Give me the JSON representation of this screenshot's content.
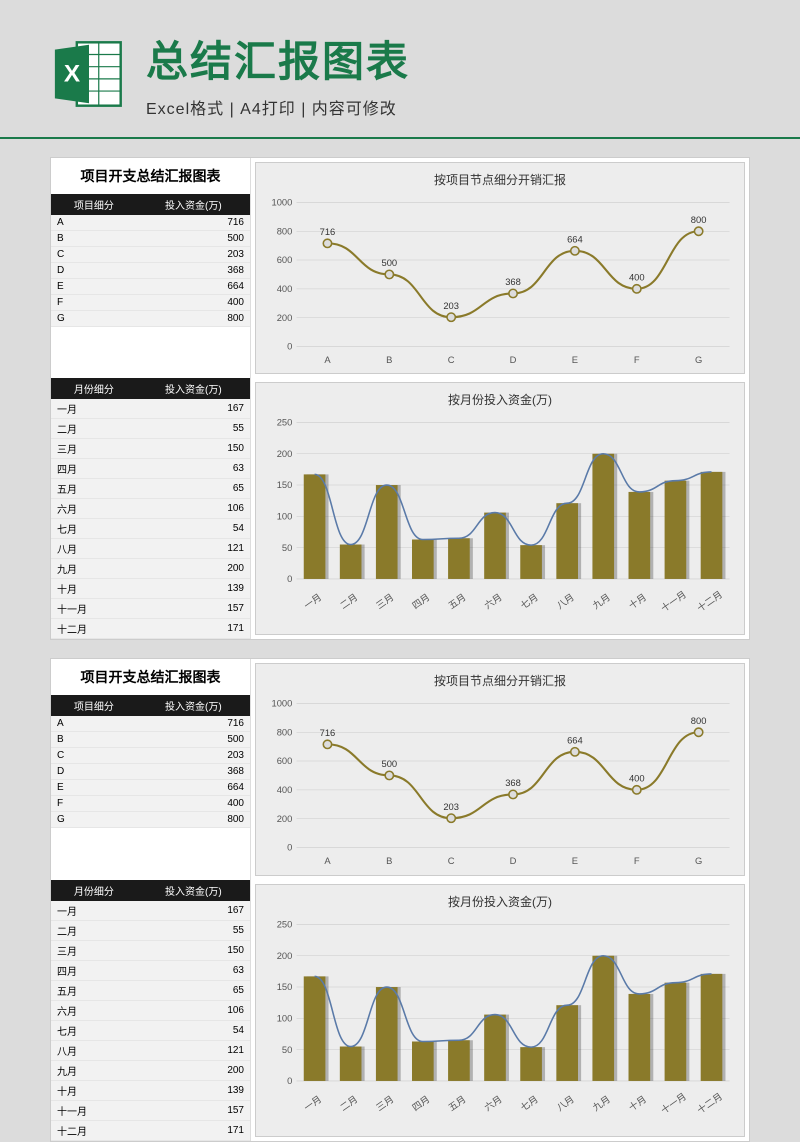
{
  "header": {
    "main_title": "总结汇报图表",
    "sub_title": "Excel格式 | A4打印 | 内容可修改",
    "icon_color": "#1a7a4a"
  },
  "panel": {
    "section_title": "项目开支总结汇报图表",
    "table1": {
      "col1": "项目细分",
      "col2": "投入资金(万)",
      "rows": [
        {
          "k": "A",
          "v": 716
        },
        {
          "k": "B",
          "v": 500
        },
        {
          "k": "C",
          "v": 203
        },
        {
          "k": "D",
          "v": 368
        },
        {
          "k": "E",
          "v": 664
        },
        {
          "k": "F",
          "v": 400
        },
        {
          "k": "G",
          "v": 800
        }
      ]
    },
    "table2": {
      "col1": "月份细分",
      "col2": "投入资金(万)",
      "rows": [
        {
          "k": "一月",
          "v": 167
        },
        {
          "k": "二月",
          "v": 55
        },
        {
          "k": "三月",
          "v": 150
        },
        {
          "k": "四月",
          "v": 63
        },
        {
          "k": "五月",
          "v": 65
        },
        {
          "k": "六月",
          "v": 106
        },
        {
          "k": "七月",
          "v": 54
        },
        {
          "k": "八月",
          "v": 121
        },
        {
          "k": "九月",
          "v": 200
        },
        {
          "k": "十月",
          "v": 139
        },
        {
          "k": "十一月",
          "v": 157
        },
        {
          "k": "十二月",
          "v": 171
        }
      ]
    },
    "chart1": {
      "type": "line",
      "title": "按项目节点细分开销汇报",
      "categories": [
        "A",
        "B",
        "C",
        "D",
        "E",
        "F",
        "G"
      ],
      "values": [
        716,
        500,
        203,
        368,
        664,
        400,
        800
      ],
      "ylim": [
        0,
        1000
      ],
      "ytick_step": 200,
      "line_color": "#8a7a2a",
      "marker_fill": "#dddddd",
      "grid_color": "#cccccc",
      "background_color": "#ededed",
      "label_fontsize": 9,
      "title_fontsize": 12
    },
    "chart2": {
      "type": "bar+line",
      "title": "按月份投入资金(万)",
      "categories": [
        "一月",
        "二月",
        "三月",
        "四月",
        "五月",
        "六月",
        "七月",
        "八月",
        "九月",
        "十月",
        "十一月",
        "十二月"
      ],
      "values": [
        167,
        55,
        150,
        63,
        65,
        106,
        54,
        121,
        200,
        139,
        157,
        171
      ],
      "ylim": [
        0,
        250
      ],
      "ytick_step": 50,
      "bar_color": "#8a7a2a",
      "overlay_line_color": "#5a7aa8",
      "grid_color": "#cccccc",
      "background_color": "#ededed",
      "bar_width": 0.6,
      "label_fontsize": 9,
      "title_fontsize": 12
    }
  }
}
